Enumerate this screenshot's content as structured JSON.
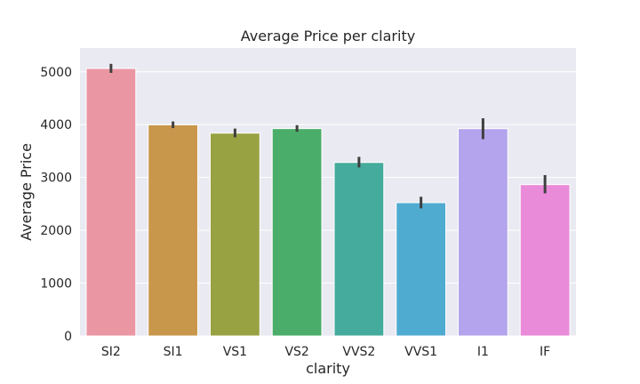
{
  "chart_data": {
    "type": "bar",
    "title": "Average Price per clarity",
    "xlabel": "clarity",
    "ylabel": "Average Price",
    "categories": [
      "SI2",
      "SI1",
      "VS1",
      "VS2",
      "VVS2",
      "VVS1",
      "I1",
      "IF"
    ],
    "values": [
      5063,
      3996,
      3839,
      3925,
      3284,
      2523,
      3924,
      2865
    ],
    "error_bars": [
      [
        4980,
        5150
      ],
      [
        3935,
        4060
      ],
      [
        3760,
        3925
      ],
      [
        3865,
        3990
      ],
      [
        3190,
        3390
      ],
      [
        2415,
        2635
      ],
      [
        3725,
        4120
      ],
      [
        2700,
        3045
      ]
    ],
    "colors": [
      "#ea96a3",
      "#c9974b",
      "#98a243",
      "#4bad6a",
      "#45ab9c",
      "#50abd1",
      "#b4a4ed",
      "#e98bd9"
    ],
    "ylim": [
      0,
      5450
    ],
    "yticks": [
      0,
      1000,
      2000,
      3000,
      4000,
      5000
    ],
    "grid": true,
    "background": "#eaeaf2",
    "grid_color": "#ffffff",
    "errorbar_color": "#3f3f3f"
  }
}
